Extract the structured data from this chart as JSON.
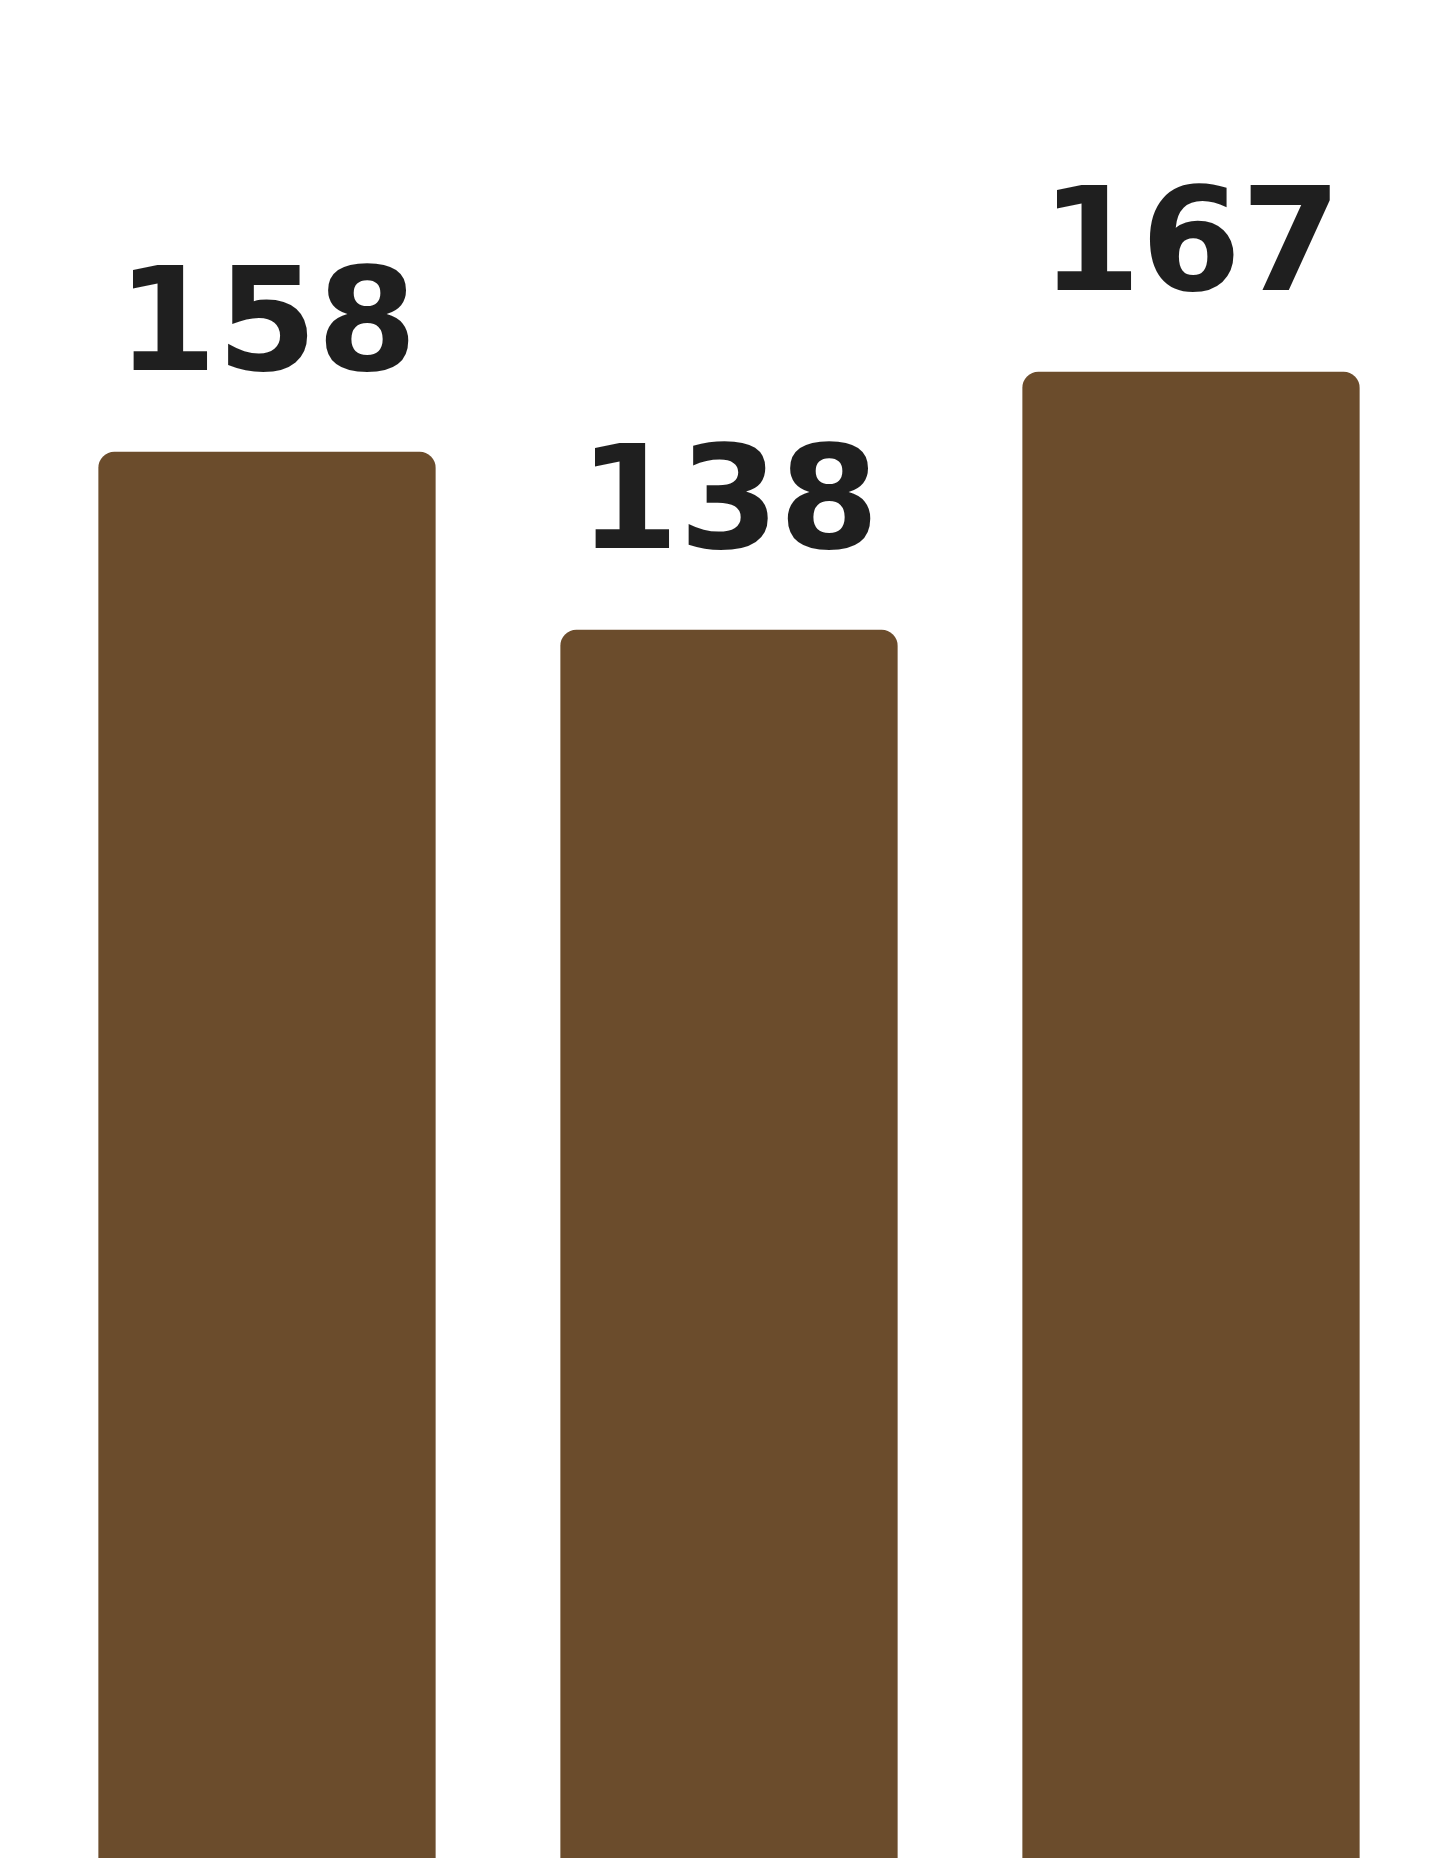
{
  "chart_data": {
    "type": "bar",
    "categories": [
      null,
      null,
      null
    ],
    "values": [
      158,
      138,
      167
    ],
    "color": "#6b4c2c",
    "data_labels": true
  }
}
